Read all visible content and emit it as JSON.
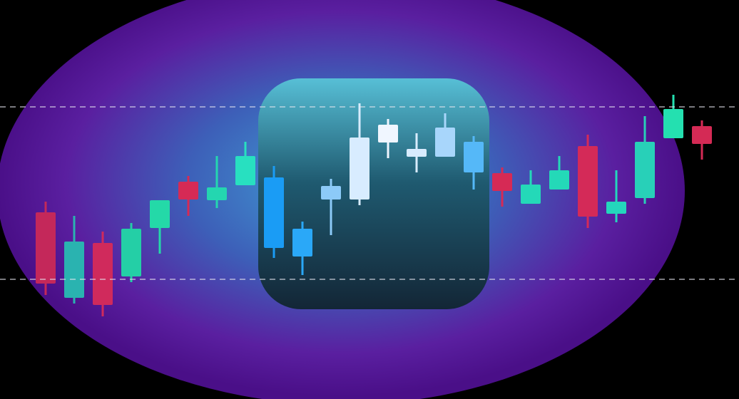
{
  "chart_data": {
    "type": "candlestick",
    "open": [
      262,
      142,
      219,
      172,
      240,
      305,
      279,
      300,
      311,
      200,
      280,
      280,
      360,
      351,
      381,
      361,
      317,
      274,
      294,
      355,
      260,
      282,
      366,
      383
    ],
    "high": [
      277,
      257,
      235,
      247,
      279,
      313,
      341,
      361,
      327,
      249,
      309,
      415,
      393,
      373,
      401,
      369,
      325,
      321,
      341,
      371,
      321,
      397,
      427,
      391
    ],
    "low": [
      146,
      134,
      116,
      164,
      204,
      257,
      268,
      300,
      198,
      174,
      230,
      272,
      338,
      318,
      340,
      294,
      270,
      274,
      294,
      240,
      248,
      274,
      366,
      336
    ],
    "close": [
      162,
      221,
      132,
      239,
      279,
      280,
      297,
      341,
      212,
      239,
      299,
      367,
      385,
      340,
      340,
      318,
      292,
      301,
      321,
      256,
      277,
      361,
      407,
      358
    ],
    "colors": [
      "#c4285a",
      "#2ab3b0",
      "#d02a5c",
      "#24cfa6",
      "#24d9a8",
      "#d62a55",
      "#24d6b0",
      "#28e0c0",
      "#1a9cf5",
      "#2aa8f8",
      "#8ccaf8",
      "#d8ecff",
      "#f0f6ff",
      "#d8ecff",
      "#a8d6fb",
      "#55b8f8",
      "#d62a55",
      "#24d9b8",
      "#24d9b8",
      "#d42a58",
      "#24d6bc",
      "#28d0b8",
      "#24e0b0",
      "#d42a55"
    ],
    "ylim": [
      0,
      560
    ],
    "reference_lines": [
      410,
      168
    ]
  }
}
